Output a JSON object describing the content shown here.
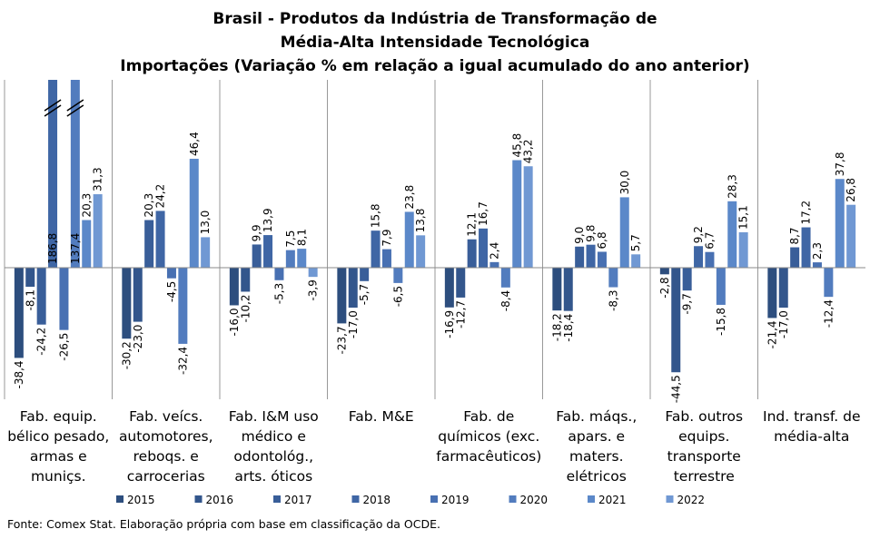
{
  "chart_data": {
    "type": "bar",
    "title": [
      "Brasil - Produtos da Indústria de Transformação de",
      "Média-Alta Intensidade Tecnológica"
    ],
    "subtitle": "Importações (Variação % em relação a igual acumulado do ano anterior)",
    "note": "Fonte: Comex Stat. Elaboração própria com base em classificação da OCDE.",
    "categories": [
      "Fab. equip. bélico pesado, armas e muniçs.",
      "Fab. veícs. automotores, reboqs. e carrocerias",
      "Fab. I&M uso médico e odontológ., arts. óticos",
      "Fab. M&E",
      "Fab. de químicos (exc. farmacêuticos)",
      "Fab. máqs., apars. e maters. elétricos",
      "Fab. outros equips. transporte terrestre",
      "Ind. transf. de média-alta"
    ],
    "ylim": [
      -56,
      80
    ],
    "series": [
      {
        "name": "2015",
        "color": "#2d4e7e",
        "values": [
          -38.4,
          -30.2,
          -16.0,
          -23.7,
          -16.9,
          -18.2,
          -2.8,
          -21.4
        ],
        "value_labels": [
          "-38,4",
          "-30,2",
          "-16,0",
          "-23,7",
          "-16,9",
          "-18,2",
          "-2,8",
          "-21,4"
        ]
      },
      {
        "name": "2016",
        "color": "#33568c",
        "values": [
          -8.1,
          -23.0,
          -10.2,
          -17.0,
          -12.7,
          -18.4,
          -44.5,
          -17.0
        ],
        "value_labels": [
          "-8,1",
          "-23,0",
          "-10,2",
          "-17,0",
          "-12,7",
          "-18,4",
          "-44,5",
          "-17,0"
        ]
      },
      {
        "name": "2017",
        "color": "#395e99",
        "values": [
          -24.2,
          20.3,
          9.9,
          -5.7,
          12.1,
          9.0,
          -9.7,
          8.7
        ],
        "value_labels": [
          "-24,2",
          "20,3",
          "9,9",
          "-5,7",
          "12,1",
          "9,0",
          "-9,7",
          "8,7"
        ]
      },
      {
        "name": "2018",
        "color": "#3f66a5",
        "values": [
          186.8,
          24.2,
          13.9,
          15.8,
          16.7,
          9.8,
          9.2,
          17.2
        ],
        "value_labels": [
          "186,8",
          "24,2",
          "13,9",
          "15,8",
          "16,7",
          "9,8",
          "9,2",
          "17,2"
        ]
      },
      {
        "name": "2019",
        "color": "#4870b2",
        "values": [
          -26.5,
          -4.5,
          -5.3,
          7.9,
          2.4,
          6.8,
          6.7,
          2.3
        ],
        "value_labels": [
          "-26,5",
          "-4,5",
          "-5,3",
          "7,9",
          "2,4",
          "6,8",
          "6,7",
          "2,3"
        ]
      },
      {
        "name": "2020",
        "color": "#527cbe",
        "values": [
          137.4,
          -32.4,
          7.5,
          -6.5,
          -8.4,
          -8.3,
          -15.8,
          -12.4
        ],
        "value_labels": [
          "137,4",
          "-32,4",
          "7,5",
          "-6,5",
          "-8,4",
          "-8,3",
          "-15,8",
          "-12,4"
        ]
      },
      {
        "name": "2021",
        "color": "#5b88c9",
        "values": [
          20.3,
          46.4,
          8.1,
          23.8,
          45.8,
          30.0,
          28.3,
          37.8
        ],
        "value_labels": [
          "20,3",
          "46,4",
          "8,1",
          "23,8",
          "45,8",
          "30,0",
          "28,3",
          "37,8"
        ]
      },
      {
        "name": "2022",
        "color": "#7098d3",
        "values": [
          31.3,
          13.0,
          -3.9,
          13.8,
          43.2,
          5.7,
          15.1,
          26.8
        ],
        "value_labels": [
          "31,3",
          "13,0",
          "-3,9",
          "13,8",
          "43,2",
          "5,7",
          "15,1",
          "26,8"
        ]
      }
    ]
  }
}
